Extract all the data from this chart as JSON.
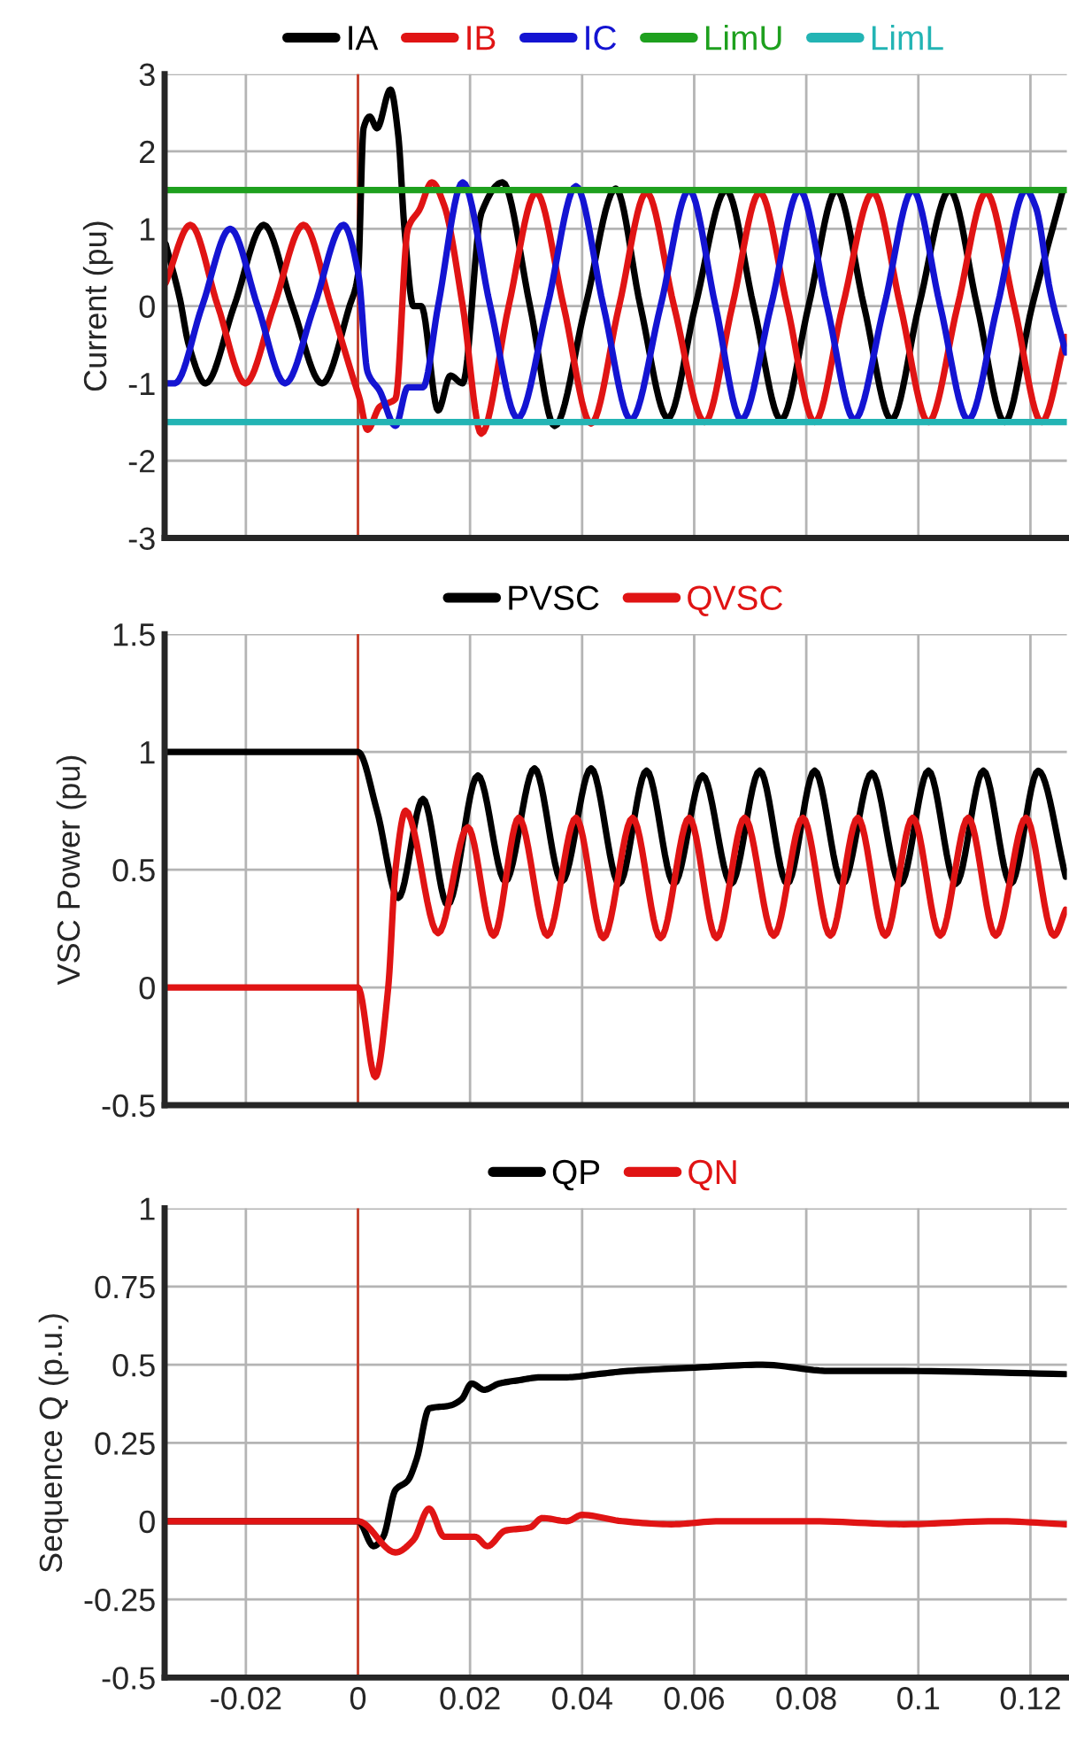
{
  "chart_data": [
    {
      "type": "line",
      "ylabel": "Current (pu)",
      "xlim": [
        -0.0345,
        0.1265
      ],
      "ylim": [
        -3,
        3
      ],
      "xticks": [
        -0.02,
        0,
        0.02,
        0.04,
        0.06,
        0.08,
        0.1,
        0.12
      ],
      "yticks": [
        -3,
        -2,
        -1,
        0,
        1,
        2,
        3
      ],
      "grid": true,
      "legend": "top",
      "tick_labels": "y",
      "line_style": "solid",
      "ref_lines": [
        {
          "axis": "x",
          "value": 0,
          "color": "#c83c28"
        }
      ],
      "series": [
        {
          "name": "IA",
          "color": "#000000",
          "x": [
            -0.0343,
            -0.0318,
            -0.0302,
            -0.0272,
            -0.0221,
            -0.0168,
            -0.0117,
            -0.0064,
            -0.0015,
            0.0,
            0.001,
            0.0021,
            0.0034,
            0.0058,
            0.0072,
            0.0083,
            0.0099,
            0.0113,
            0.0143,
            0.0165,
            0.0187,
            0.022,
            0.0258,
            0.0307,
            0.0351,
            0.0406,
            0.046,
            0.0504,
            0.0553,
            0.0602,
            0.0657,
            0.0706,
            0.0755,
            0.0804,
            0.0854,
            0.0903,
            0.0952,
            0.1001,
            0.1056,
            0.1105,
            0.1154,
            0.1203,
            0.1258
          ],
          "values": [
            0.8,
            0.1,
            -0.5,
            -1.0,
            0,
            1.05,
            0,
            -1.0,
            0,
            0.4,
            2.3,
            2.45,
            2.3,
            2.8,
            2.2,
            1.0,
            0.0,
            0.0,
            -1.35,
            -0.9,
            -1.0,
            1.2,
            1.6,
            0,
            -1.55,
            0,
            1.52,
            0,
            -1.45,
            0,
            1.5,
            0,
            -1.47,
            0,
            1.5,
            0,
            -1.47,
            0,
            1.5,
            0,
            -1.5,
            0,
            1.5
          ]
        },
        {
          "name": "IB",
          "color": "#e01414",
          "x": [
            -0.0343,
            -0.0299,
            -0.025,
            -0.0201,
            -0.015,
            -0.0097,
            -0.0048,
            -0.001,
            0.0003,
            0.0017,
            0.0039,
            0.0067,
            0.0089,
            0.011,
            0.0132,
            0.0154,
            0.0187,
            0.022,
            0.0269,
            0.0318,
            0.0367,
            0.0416,
            0.0466,
            0.0515,
            0.0564,
            0.0619,
            0.0668,
            0.0717,
            0.0766,
            0.0815,
            0.0865,
            0.0919,
            0.0968,
            0.1018,
            0.107,
            0.1121,
            0.1171,
            0.122,
            0.1263
          ],
          "values": [
            0.3,
            1.05,
            0,
            -1.0,
            0,
            1.05,
            0,
            -0.9,
            -1.2,
            -1.6,
            -1.3,
            -1.2,
            1.0,
            1.25,
            1.6,
            1.3,
            0,
            -1.65,
            0,
            1.47,
            0,
            -1.52,
            0,
            1.47,
            0,
            -1.5,
            0,
            1.47,
            0,
            -1.5,
            0,
            1.47,
            0,
            -1.5,
            0,
            1.47,
            0,
            -1.5,
            -0.4
          ]
        },
        {
          "name": "IC",
          "color": "#1414d2",
          "x": [
            -0.0343,
            -0.0327,
            -0.0278,
            -0.0228,
            -0.0179,
            -0.013,
            -0.0078,
            -0.0026,
            0.0001,
            0.0017,
            0.0039,
            0.0067,
            0.0089,
            0.0116,
            0.0143,
            0.0187,
            0.0236,
            0.0285,
            0.0338,
            0.0389,
            0.0438,
            0.0487,
            0.054,
            0.0591,
            0.0638,
            0.0684,
            0.0737,
            0.0788,
            0.0837,
            0.0886,
            0.0939,
            0.099,
            0.1039,
            0.1089,
            0.1141,
            0.1192,
            0.121,
            0.1235,
            0.1263
          ],
          "values": [
            -1.0,
            -1.0,
            0,
            1.0,
            0,
            -1.0,
            0,
            1.05,
            0.4,
            -0.85,
            -1.1,
            -1.55,
            -1.05,
            -1.05,
            0,
            1.6,
            0,
            -1.45,
            0,
            1.55,
            0,
            -1.47,
            0,
            1.5,
            0,
            -1.47,
            0,
            1.5,
            0,
            -1.47,
            0,
            1.5,
            0,
            -1.47,
            0,
            1.5,
            1.27,
            0.2,
            -0.6
          ]
        },
        {
          "name": "LimU",
          "color": "#1ea01e",
          "x": [
            -0.0345,
            0.1265
          ],
          "values": [
            1.5,
            1.5
          ]
        },
        {
          "name": "LimL",
          "color": "#23b4b4",
          "x": [
            -0.0345,
            0.1265
          ],
          "values": [
            -1.5,
            -1.5
          ]
        }
      ]
    },
    {
      "type": "line",
      "ylabel": "VSC Power (pu)",
      "xlim": [
        -0.0345,
        0.1265
      ],
      "ylim": [
        -0.5,
        1.5
      ],
      "xticks": [
        -0.02,
        0,
        0.02,
        0.04,
        0.06,
        0.08,
        0.1,
        0.12
      ],
      "yticks": [
        -0.5,
        0,
        0.5,
        1,
        1.5
      ],
      "grid": true,
      "legend": "top",
      "tick_labels": "y",
      "line_style": "solid",
      "ref_lines": [
        {
          "axis": "x",
          "value": 0,
          "color": "#c83c28"
        }
      ],
      "series": [
        {
          "name": "PVSC",
          "color": "#000000",
          "x": [
            -0.0343,
            -0.02,
            0.0,
            0.0034,
            0.0072,
            0.0116,
            0.016,
            0.0214,
            0.0263,
            0.0315,
            0.0364,
            0.0416,
            0.0466,
            0.0515,
            0.0564,
            0.0615,
            0.0666,
            0.0717,
            0.0766,
            0.0815,
            0.0865,
            0.0917,
            0.0968,
            0.1018,
            0.1067,
            0.1116,
            0.1165,
            0.1214,
            0.1263
          ],
          "values": [
            1.0,
            1.0,
            1.0,
            0.75,
            0.38,
            0.8,
            0.35,
            0.9,
            0.45,
            0.93,
            0.45,
            0.93,
            0.44,
            0.92,
            0.44,
            0.9,
            0.44,
            0.92,
            0.44,
            0.92,
            0.44,
            0.91,
            0.44,
            0.92,
            0.44,
            0.92,
            0.44,
            0.92,
            0.47
          ]
        },
        {
          "name": "QVSC",
          "color": "#e01414",
          "x": [
            -0.0343,
            -0.02,
            0.0,
            0.0031,
            0.0054,
            0.0067,
            0.0085,
            0.0143,
            0.0196,
            0.0242,
            0.0287,
            0.0338,
            0.0389,
            0.0438,
            0.049,
            0.054,
            0.0591,
            0.064,
            0.069,
            0.0742,
            0.0794,
            0.0843,
            0.0892,
            0.0941,
            0.099,
            0.1039,
            0.1089,
            0.1138,
            0.1192,
            0.1242,
            0.1263
          ],
          "values": [
            0,
            0,
            0,
            -0.38,
            0,
            0.5,
            0.75,
            0.23,
            0.68,
            0.22,
            0.72,
            0.22,
            0.72,
            0.21,
            0.72,
            0.21,
            0.72,
            0.21,
            0.72,
            0.22,
            0.72,
            0.22,
            0.72,
            0.22,
            0.72,
            0.22,
            0.72,
            0.22,
            0.72,
            0.22,
            0.33
          ]
        }
      ]
    },
    {
      "type": "line",
      "ylabel": "Sequence Q (p.u.)",
      "xlim": [
        -0.0345,
        0.1265
      ],
      "ylim": [
        -0.5,
        1
      ],
      "xticks": [
        -0.02,
        0,
        0.02,
        0.04,
        0.06,
        0.08,
        0.1,
        0.12
      ],
      "yticks": [
        -0.5,
        -0.25,
        0,
        0.25,
        0.5,
        0.75,
        1
      ],
      "grid": true,
      "legend": "top",
      "line_style": "solid",
      "ref_lines": [
        {
          "axis": "x",
          "value": 0,
          "color": "#c83c28"
        }
      ],
      "series": [
        {
          "name": "QP",
          "color": "#000000",
          "x": [
            -0.0343,
            0.0,
            0.0028,
            0.0045,
            0.0067,
            0.0089,
            0.0105,
            0.0127,
            0.0165,
            0.0185,
            0.0203,
            0.0225,
            0.0252,
            0.0285,
            0.0329,
            0.0373,
            0.0427,
            0.0482,
            0.0591,
            0.0722,
            0.0843,
            0.0974,
            0.1263
          ],
          "values": [
            0,
            0,
            -0.08,
            -0.05,
            0.1,
            0.13,
            0.2,
            0.36,
            0.37,
            0.39,
            0.44,
            0.42,
            0.44,
            0.45,
            0.46,
            0.46,
            0.47,
            0.48,
            0.49,
            0.5,
            0.48,
            0.48,
            0.47
          ]
        },
        {
          "name": "QN",
          "color": "#e01414",
          "x": [
            -0.0343,
            0.0,
            0.0067,
            0.0099,
            0.0127,
            0.0154,
            0.0209,
            0.0231,
            0.0263,
            0.0307,
            0.0329,
            0.0373,
            0.04,
            0.0471,
            0.0559,
            0.0646,
            0.081,
            0.0974,
            0.1138,
            0.1263
          ],
          "values": [
            0,
            0,
            -0.1,
            -0.06,
            0.04,
            -0.05,
            -0.05,
            -0.08,
            -0.03,
            -0.02,
            0.01,
            0,
            0.02,
            0,
            -0.01,
            0,
            0,
            -0.01,
            0,
            -0.01
          ]
        }
      ]
    }
  ]
}
